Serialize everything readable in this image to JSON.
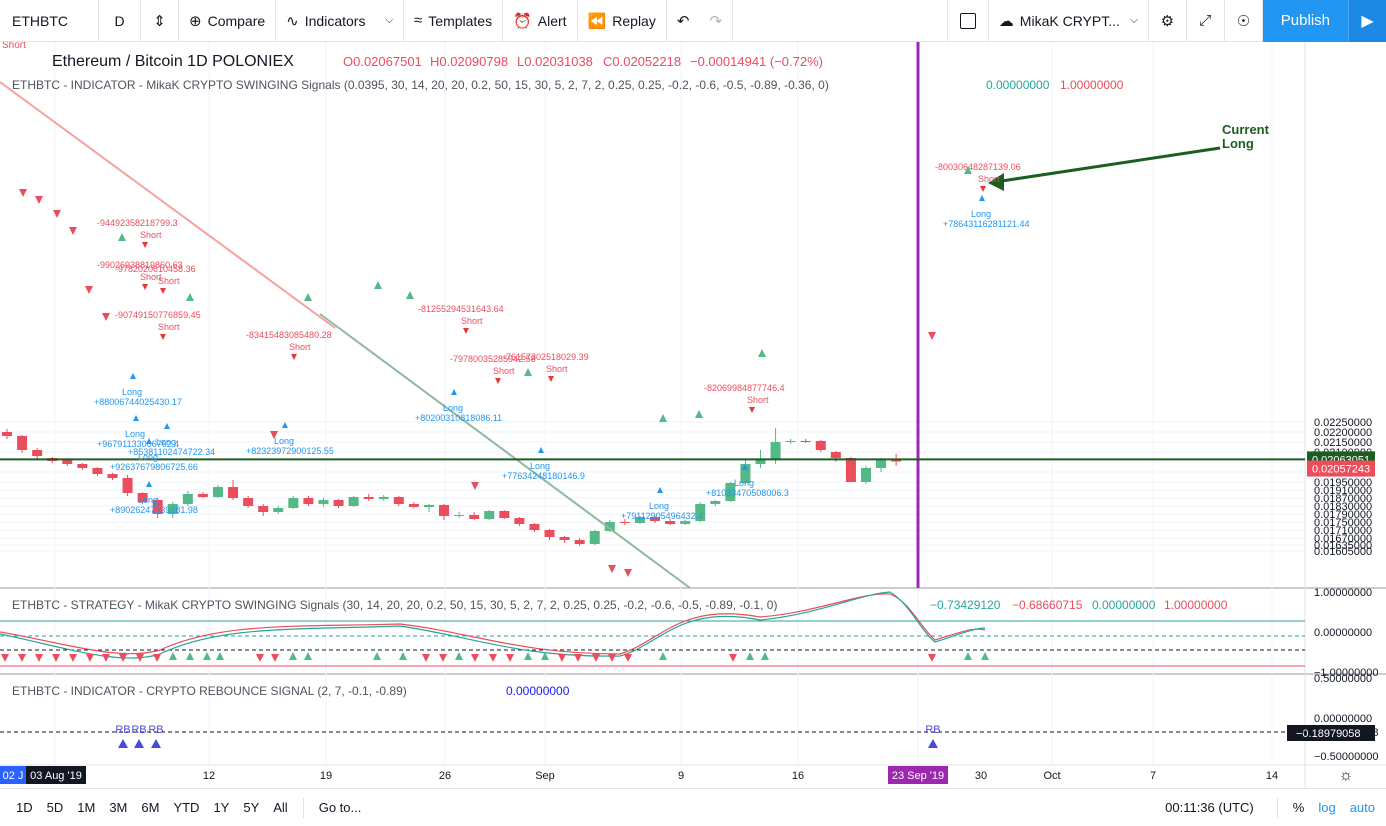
{
  "toolbar": {
    "symbol": "ETHBTC",
    "interval": "D",
    "compare": "Compare",
    "indicators": "Indicators",
    "templates": "Templates",
    "alert": "Alert",
    "replay": "Replay",
    "layout_name": "MikaK CRYPT...",
    "publish": "Publish"
  },
  "header": {
    "title": "Ethereum / Bitcoin  1D  POLONIEX",
    "o": "O0.02067501",
    "h": "H0.02090798",
    "l": "L0.02031038",
    "c": "C0.02052218",
    "chg": "−0.00014941 (−0.72%)"
  },
  "indicator1": {
    "label": "ETHBTC - INDICATOR - MikaK CRYPTO SWINGING Signals (0.0395, 30, 14, 20, 20, 0.2, 50, 15, 30, 5, 2, 7, 2, 0.25, 0.25, -0.2, -0.6, -0.5, -0.89, -0.36, 0)",
    "v1": "0.00000000",
    "v2": "1.00000000"
  },
  "strategy": {
    "label": "ETHBTC - STRATEGY - MikaK CRYPTO SWINGING Signals (30, 14, 20, 20, 0.2, 50, 15, 30, 5, 2, 7, 2, 0.25, 0.25, -0.2, -0.6, -0.5, -0.89, -0.1, 0)",
    "v1": "−0.73429120",
    "v2": "−0.68660715",
    "v3": "0.00000000",
    "v4": "1.00000000"
  },
  "rebounce": {
    "label": "ETHBTC - INDICATOR - CRYPTO REBOUNCE SIGNAL (2, 7, -0.1, -0.89)",
    "v1": "0.00000000"
  },
  "price_axis": [
    "0.02250000",
    "0.02200000",
    "0.02150000",
    "0.02100000",
    "0.02000000",
    "0.01950000",
    "0.01910000",
    "0.01870000",
    "0.01830000",
    "0.01790000",
    "0.01750000",
    "0.01710000",
    "0.01670000",
    "0.01635000",
    "0.01605000"
  ],
  "price_labels": {
    "current": "0.02063051",
    "last": "0.02057243"
  },
  "strategy_axis": [
    "1.00000000",
    "0.00000000",
    "−1.00000000"
  ],
  "rebounce_axis": [
    "0.50000000",
    "0.00000000",
    "−0.18979058",
    "−0.50000000"
  ],
  "time_axis": [
    "02 J",
    "03 Aug '19",
    "12",
    "19",
    "26",
    "Sep",
    "9",
    "16",
    "23 Sep '19",
    "30",
    "Oct",
    "7",
    "14"
  ],
  "annotation": {
    "line1": "Current",
    "line2": "Long"
  },
  "signals": {
    "short": "Short",
    "long": "Long",
    "rb": "RB",
    "short_values": [
      "-94492358218799.3",
      "-99026938819860.63",
      "-9782020610458.36",
      "-90749150776859.45",
      "-83415483085480.28",
      "-81255294531643.64",
      "-79780035285942.58",
      "-76157302518029.39",
      "-82069984877746.4",
      "-80030648287139.06"
    ],
    "long_values": [
      "+88006744025430.17",
      "+96791133006762.4",
      "+85381102474722.34",
      "+92637679806725.66",
      "+89026247239281.98",
      "+82323972900125.55",
      "+80200310818086.11",
      "+77634248180146.9",
      "+79112905496432.4",
      "+81033470508006.3",
      "+78643116281121.44"
    ]
  },
  "bottom": {
    "ranges": [
      "1D",
      "5D",
      "1M",
      "3M",
      "6M",
      "YTD",
      "1Y",
      "5Y",
      "All"
    ],
    "goto": "Go to...",
    "time": "00:11:36 (UTC)",
    "pct": "%",
    "log": "log",
    "auto": "auto"
  },
  "colors": {
    "up": "#53b987",
    "down": "#eb4d5c",
    "accent": "#2196f3",
    "event_line": "#9c27b0",
    "current_line": "#1b5e20"
  },
  "chart_data": {
    "type": "candlestick",
    "title": "Ethereum / Bitcoin 1D POLONIEX",
    "candles": [
      {
        "x": "Jul 30",
        "o": 0.022,
        "h": 0.02215,
        "l": 0.02165,
        "c": 0.0218
      },
      {
        "x": "Jul 31",
        "o": 0.0218,
        "h": 0.02185,
        "l": 0.02095,
        "c": 0.0211
      },
      {
        "x": "Aug 1",
        "o": 0.0211,
        "h": 0.0212,
        "l": 0.0206,
        "c": 0.0208
      },
      {
        "x": "Aug 2",
        "o": 0.0207,
        "h": 0.02075,
        "l": 0.02045,
        "c": 0.02055
      },
      {
        "x": "Aug 3",
        "o": 0.0206,
        "h": 0.0207,
        "l": 0.0203,
        "c": 0.0204
      },
      {
        "x": "Aug 4",
        "o": 0.0204,
        "h": 0.02045,
        "l": 0.0201,
        "c": 0.0202
      },
      {
        "x": "Aug 5",
        "o": 0.0202,
        "h": 0.02025,
        "l": 0.0198,
        "c": 0.0199
      },
      {
        "x": "Aug 6",
        "o": 0.0199,
        "h": 0.01995,
        "l": 0.0196,
        "c": 0.0197
      },
      {
        "x": "Aug 7",
        "o": 0.0197,
        "h": 0.01985,
        "l": 0.0188,
        "c": 0.01895
      },
      {
        "x": "Aug 8",
        "o": 0.01895,
        "h": 0.019,
        "l": 0.0184,
        "c": 0.0185
      },
      {
        "x": "Aug 9",
        "o": 0.0186,
        "h": 0.0187,
        "l": 0.0177,
        "c": 0.0179
      },
      {
        "x": "Aug 10",
        "o": 0.0179,
        "h": 0.0185,
        "l": 0.0177,
        "c": 0.0184
      },
      {
        "x": "Aug 11",
        "o": 0.0184,
        "h": 0.01905,
        "l": 0.0183,
        "c": 0.0189
      },
      {
        "x": "Aug 12",
        "o": 0.0189,
        "h": 0.019,
        "l": 0.0187,
        "c": 0.01875
      },
      {
        "x": "Aug 13",
        "o": 0.01875,
        "h": 0.01935,
        "l": 0.0187,
        "c": 0.01925
      },
      {
        "x": "Aug 14",
        "o": 0.01925,
        "h": 0.0196,
        "l": 0.0186,
        "c": 0.0187
      },
      {
        "x": "Aug 15",
        "o": 0.0187,
        "h": 0.0188,
        "l": 0.0182,
        "c": 0.0183
      },
      {
        "x": "Aug 16",
        "o": 0.0183,
        "h": 0.0184,
        "l": 0.0178,
        "c": 0.018
      },
      {
        "x": "Aug 17",
        "o": 0.018,
        "h": 0.0183,
        "l": 0.0179,
        "c": 0.0182
      },
      {
        "x": "Aug 18",
        "o": 0.0182,
        "h": 0.0188,
        "l": 0.01815,
        "c": 0.0187
      },
      {
        "x": "Aug 19",
        "o": 0.0187,
        "h": 0.0188,
        "l": 0.0183,
        "c": 0.0184
      },
      {
        "x": "Aug 20",
        "o": 0.0184,
        "h": 0.0187,
        "l": 0.01825,
        "c": 0.0186
      },
      {
        "x": "Aug 21",
        "o": 0.0186,
        "h": 0.01865,
        "l": 0.0182,
        "c": 0.0183
      },
      {
        "x": "Aug 22",
        "o": 0.0183,
        "h": 0.0188,
        "l": 0.01825,
        "c": 0.01875
      },
      {
        "x": "Aug 23",
        "o": 0.01875,
        "h": 0.0189,
        "l": 0.01855,
        "c": 0.01865
      },
      {
        "x": "Aug 24",
        "o": 0.01865,
        "h": 0.01885,
        "l": 0.01855,
        "c": 0.01875
      },
      {
        "x": "Aug 25",
        "o": 0.01875,
        "h": 0.0188,
        "l": 0.0183,
        "c": 0.0184
      },
      {
        "x": "Aug 26",
        "o": 0.0184,
        "h": 0.0185,
        "l": 0.0182,
        "c": 0.01825
      },
      {
        "x": "Aug 27",
        "o": 0.01825,
        "h": 0.0184,
        "l": 0.018,
        "c": 0.01835
      },
      {
        "x": "Aug 28",
        "o": 0.01835,
        "h": 0.0184,
        "l": 0.0176,
        "c": 0.0178
      },
      {
        "x": "Aug 29",
        "o": 0.0178,
        "h": 0.018,
        "l": 0.0177,
        "c": 0.01785
      },
      {
        "x": "Aug 30",
        "o": 0.01785,
        "h": 0.018,
        "l": 0.0176,
        "c": 0.01765
      },
      {
        "x": "Aug 31",
        "o": 0.01765,
        "h": 0.0181,
        "l": 0.0176,
        "c": 0.01805
      },
      {
        "x": "Sep 1",
        "o": 0.01805,
        "h": 0.0181,
        "l": 0.01765,
        "c": 0.0177
      },
      {
        "x": "Sep 2",
        "o": 0.0177,
        "h": 0.01775,
        "l": 0.0173,
        "c": 0.0174
      },
      {
        "x": "Sep 3",
        "o": 0.0174,
        "h": 0.01745,
        "l": 0.017,
        "c": 0.0171
      },
      {
        "x": "Sep 4",
        "o": 0.0171,
        "h": 0.01715,
        "l": 0.0166,
        "c": 0.01675
      },
      {
        "x": "Sep 5",
        "o": 0.01675,
        "h": 0.0168,
        "l": 0.01645,
        "c": 0.0166
      },
      {
        "x": "Sep 6",
        "o": 0.0166,
        "h": 0.0167,
        "l": 0.0163,
        "c": 0.0164
      },
      {
        "x": "Sep 7",
        "o": 0.0164,
        "h": 0.0171,
        "l": 0.01635,
        "c": 0.01705
      },
      {
        "x": "Sep 8",
        "o": 0.01705,
        "h": 0.0176,
        "l": 0.017,
        "c": 0.0175
      },
      {
        "x": "Sep 9",
        "o": 0.0175,
        "h": 0.01765,
        "l": 0.01735,
        "c": 0.01745
      },
      {
        "x": "Sep 10",
        "o": 0.01745,
        "h": 0.0178,
        "l": 0.0174,
        "c": 0.01775
      },
      {
        "x": "Sep 11",
        "o": 0.01775,
        "h": 0.0178,
        "l": 0.01745,
        "c": 0.01755
      },
      {
        "x": "Sep 12",
        "o": 0.01755,
        "h": 0.01765,
        "l": 0.01735,
        "c": 0.0174
      },
      {
        "x": "Sep 13",
        "o": 0.0174,
        "h": 0.0176,
        "l": 0.01735,
        "c": 0.01755
      },
      {
        "x": "Sep 14",
        "o": 0.01755,
        "h": 0.0185,
        "l": 0.0175,
        "c": 0.0184
      },
      {
        "x": "Sep 15",
        "o": 0.0184,
        "h": 0.0186,
        "l": 0.0183,
        "c": 0.01855
      },
      {
        "x": "Sep 16",
        "o": 0.01855,
        "h": 0.0195,
        "l": 0.0185,
        "c": 0.01945
      },
      {
        "x": "Sep 17",
        "o": 0.01945,
        "h": 0.0206,
        "l": 0.0194,
        "c": 0.0204
      },
      {
        "x": "Sep 18",
        "o": 0.0204,
        "h": 0.0211,
        "l": 0.0202,
        "c": 0.02065
      },
      {
        "x": "Sep 19",
        "o": 0.02065,
        "h": 0.0222,
        "l": 0.0204,
        "c": 0.0215
      },
      {
        "x": "Sep 20",
        "o": 0.0215,
        "h": 0.02165,
        "l": 0.0214,
        "c": 0.02155
      },
      {
        "x": "Sep 21",
        "o": 0.02155,
        "h": 0.02165,
        "l": 0.02145,
        "c": 0.0215
      },
      {
        "x": "Sep 22",
        "o": 0.02155,
        "h": 0.0216,
        "l": 0.021,
        "c": 0.0211
      },
      {
        "x": "Sep 23",
        "o": 0.021,
        "h": 0.02105,
        "l": 0.0205,
        "c": 0.0207
      },
      {
        "x": "Sep 24",
        "o": 0.0207,
        "h": 0.02075,
        "l": 0.0195,
        "c": 0.0195
      },
      {
        "x": "Sep 25",
        "o": 0.0195,
        "h": 0.0203,
        "l": 0.0194,
        "c": 0.0202
      },
      {
        "x": "Sep 26",
        "o": 0.0202,
        "h": 0.0207,
        "l": 0.02,
        "c": 0.0206
      },
      {
        "x": "Sep 27",
        "o": 0.02067501,
        "h": 0.02090798,
        "l": 0.02031038,
        "c": 0.02052218
      }
    ]
  }
}
